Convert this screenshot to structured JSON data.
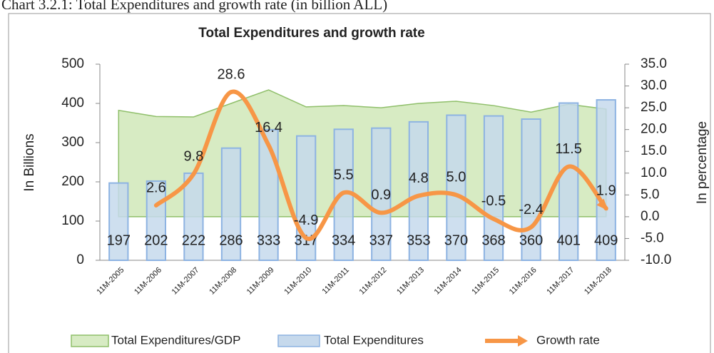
{
  "caption": "Chart 3.2.1: Total Expenditures and growth rate (in billion ALL)",
  "chart_data": {
    "type": "combo",
    "title": "Total Expenditures and growth rate",
    "y_label": "In Billions",
    "y2_label": "In percentage",
    "categories": [
      "11M-2005",
      "11M-2006",
      "11M-2007",
      "11M-2008",
      "11M-2009",
      "11M-2010",
      "11M-2011",
      "11M-2012",
      "11M-2013",
      "11M-2014",
      "11M-2015",
      "11M-2016",
      "11M-2017",
      "11M-2018"
    ],
    "ylim": [
      0,
      500
    ],
    "yticks": [
      0,
      100,
      200,
      300,
      400,
      500
    ],
    "y2lim": [
      -10,
      35
    ],
    "y2ticks": [
      {
        "value": -10,
        "label": "-10.0"
      },
      {
        "value": -5,
        "label": "-5.0"
      },
      {
        "value": 0,
        "label": "0.0"
      },
      {
        "value": 5,
        "label": "5.0"
      },
      {
        "value": 10,
        "label": "10.0"
      },
      {
        "value": 15,
        "label": "15.0"
      },
      {
        "value": 20,
        "label": "20.0"
      },
      {
        "value": 25,
        "label": "25.0"
      },
      {
        "value": 30,
        "label": "30.0"
      },
      {
        "value": 35,
        "label": "35.0"
      }
    ],
    "legend": "bottom",
    "series": [
      {
        "name": "Total Expenditures/GDP",
        "type": "area",
        "axis": "y2",
        "color": "#d7ebc3",
        "edge": "#8fbf6a",
        "values": [
          24.4,
          23.0,
          22.9,
          26.0,
          29.1,
          25.2,
          25.5,
          25.0,
          26.0,
          26.5,
          25.5,
          24.0,
          25.8,
          24.7
        ]
      },
      {
        "name": "Total Expenditures",
        "type": "bar",
        "axis": "y",
        "color": "#c6d9ec",
        "edge": "#8db3e2",
        "values": [
          197,
          202,
          222,
          286,
          333,
          317,
          334,
          337,
          353,
          370,
          368,
          360,
          401,
          409
        ]
      },
      {
        "name": "Growth rate",
        "type": "line",
        "axis": "y2",
        "color": "#f79646",
        "values": [
          null,
          2.6,
          9.8,
          28.6,
          16.4,
          -4.9,
          5.5,
          0.9,
          4.8,
          5.0,
          -0.5,
          -2.4,
          11.5,
          1.9
        ],
        "value_labels": [
          null,
          "2.6",
          "9.8",
          "28.6",
          "16.4",
          "-4.9",
          "5.5",
          "0.9",
          "4.8",
          "5.0",
          "-0.5",
          "-2.4",
          "11.5",
          "1.9"
        ]
      }
    ]
  }
}
